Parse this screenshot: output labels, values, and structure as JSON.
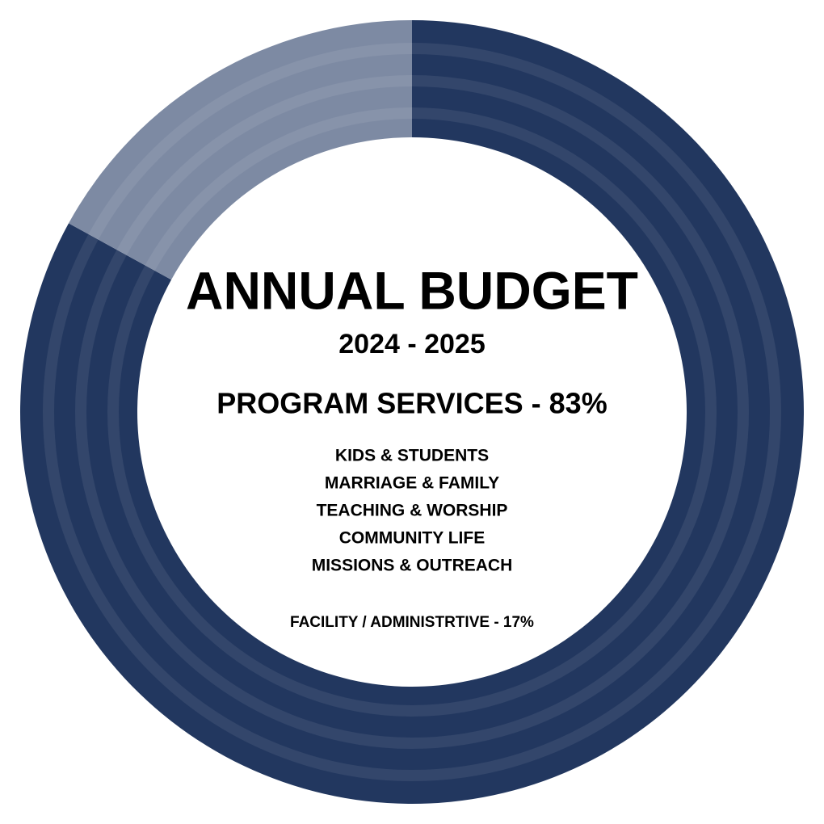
{
  "chart_data": {
    "type": "pie",
    "donut": true,
    "title": "ANNUAL BUDGET",
    "subtitle": "2024 - 2025",
    "values": [
      83,
      17
    ],
    "value_labels": [
      "PROGRAM SERVICES - 83%",
      "FACILITY / ADMINISTRTIVE - 17%"
    ],
    "colors": [
      "#22375f",
      "#7d8aa3"
    ],
    "program_items": [
      "KIDS & STUDENTS",
      "MARRIAGE & FAMILY",
      "TEACHING & WORSHIP",
      "COMMUNITY LIFE",
      "MISSIONS & OUTREACH"
    ]
  }
}
